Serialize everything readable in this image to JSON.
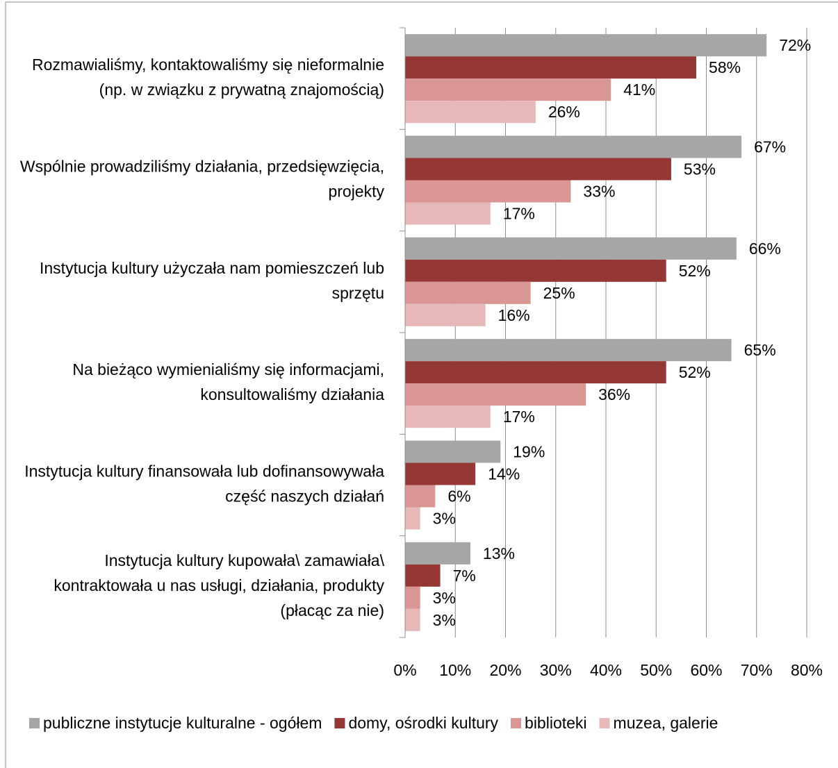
{
  "chart_data": {
    "type": "bar",
    "orientation": "horizontal",
    "categories": [
      "Rozmawialiśmy, kontaktowaliśmy się nieformalnie (np. w związku z prywatną znajomością)",
      "Wspólnie prowadziliśmy działania, przedsięwzięcia, projekty",
      "Instytucja kultury użyczała nam pomieszczeń lub sprzętu",
      "Na bieżąco wymienialiśmy się informacjami, konsultowaliśmy działania",
      "Instytucja kultury finansowała lub dofinansowywała część naszych działań",
      "Instytucja kultury kupowała\\ zamawiała\\ kontraktowała u nas usługi, działania, produkty (płacąc za nie)"
    ],
    "series": [
      {
        "name": "publiczne instytucje kulturalne - ogółem",
        "color": "#a6a6a6",
        "values": [
          72,
          67,
          66,
          65,
          19,
          13
        ],
        "value_labels": [
          "72%",
          "67%",
          "66%",
          "65%",
          "19%",
          "13%"
        ]
      },
      {
        "name": "domy, ośrodki kultury",
        "color": "#953735",
        "values": [
          58,
          53,
          52,
          52,
          14,
          7
        ],
        "value_labels": [
          "58%",
          "53%",
          "52%",
          "52%",
          "14%",
          "7%"
        ]
      },
      {
        "name": "biblioteki",
        "color": "#d99694",
        "values": [
          41,
          33,
          25,
          36,
          6,
          3
        ],
        "value_labels": [
          "41%",
          "33%",
          "25%",
          "36%",
          "6%",
          "3%"
        ]
      },
      {
        "name": "muzea, galerie",
        "color": "#e6b9b8",
        "values": [
          26,
          17,
          16,
          17,
          3,
          3
        ],
        "value_labels": [
          "26%",
          "17%",
          "16%",
          "17%",
          "3%",
          "3%"
        ]
      }
    ],
    "xlim": [
      0,
      80
    ],
    "xticks": [
      {
        "value": 0,
        "label": "0%"
      },
      {
        "value": 10,
        "label": "10%"
      },
      {
        "value": 20,
        "label": "20%"
      },
      {
        "value": 30,
        "label": "30%"
      },
      {
        "value": 40,
        "label": "40%"
      },
      {
        "value": 50,
        "label": "50%"
      },
      {
        "value": 60,
        "label": "60%"
      },
      {
        "value": 70,
        "label": "70%"
      },
      {
        "value": 80,
        "label": "80%"
      }
    ],
    "grid": true,
    "legend": "bottom"
  }
}
